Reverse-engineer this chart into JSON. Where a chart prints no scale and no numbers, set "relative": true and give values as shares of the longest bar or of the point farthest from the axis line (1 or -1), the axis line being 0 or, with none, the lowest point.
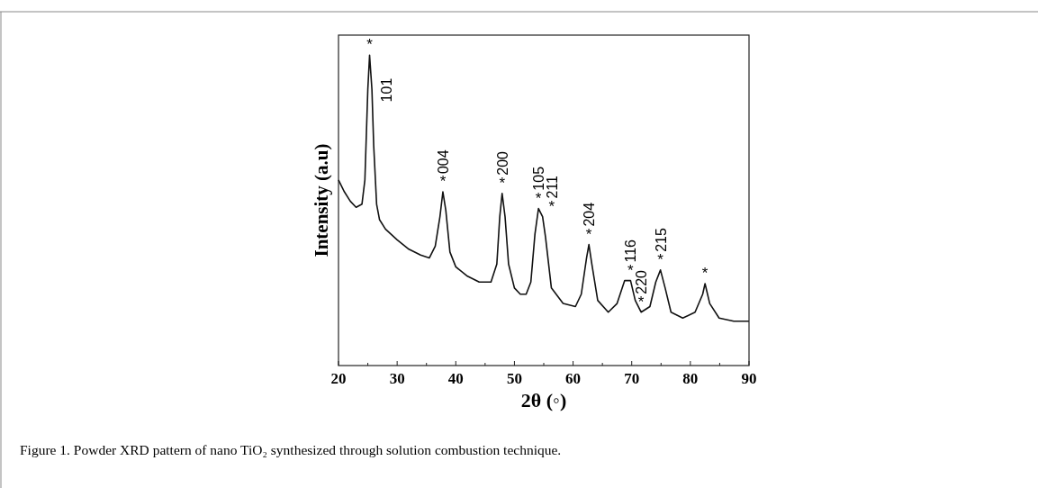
{
  "chart_data": {
    "type": "line",
    "relative": true,
    "xlabel": "2θ (◦)",
    "ylabel": "Intensity (a.u)",
    "xlim": [
      20,
      90
    ],
    "xticks": [
      20,
      {
        "value": 25,
        "label": null
      },
      30,
      {
        "value": 35,
        "label": null
      },
      40,
      {
        "value": 45,
        "label": null
      },
      50,
      {
        "value": 55,
        "label": null
      },
      60,
      {
        "value": 65,
        "label": null
      },
      70,
      {
        "value": 75,
        "label": null
      },
      80,
      {
        "value": 85,
        "label": null
      },
      90
    ],
    "grid": false,
    "marker": "none",
    "line_style": "solid",
    "tick_labels": "x",
    "series": [
      {
        "color": "#111111",
        "x": [
          20,
          21,
          22,
          23,
          24,
          24.5,
          25,
          25.3,
          25.7,
          26,
          26.5,
          27,
          28,
          30,
          32,
          34,
          35.5,
          36.5,
          37.3,
          37.8,
          38.3,
          39,
          40,
          42,
          44,
          46,
          47,
          47.5,
          47.9,
          48.4,
          49,
          50,
          51,
          52,
          52.8,
          53.5,
          54.1,
          54.8,
          55.3,
          56.3,
          58.3,
          60.4,
          61.4,
          62.3,
          62.7,
          63.2,
          64.2,
          66,
          67.5,
          68.8,
          69.8,
          70.6,
          71.6,
          73.1,
          74.1,
          74.9,
          75.7,
          76.7,
          78.7,
          80.8,
          82.1,
          82.5,
          83.3,
          84.9,
          87.4,
          90
        ],
        "values": [
          0.598,
          0.56,
          0.53,
          0.51,
          0.52,
          0.598,
          0.89,
          1,
          0.89,
          0.71,
          0.52,
          0.47,
          0.44,
          0.405,
          0.375,
          0.356,
          0.347,
          0.385,
          0.48,
          0.56,
          0.5,
          0.366,
          0.318,
          0.288,
          0.269,
          0.269,
          0.327,
          0.48,
          0.555,
          0.48,
          0.327,
          0.25,
          0.23,
          0.23,
          0.269,
          0.424,
          0.506,
          0.48,
          0.414,
          0.25,
          0.2,
          0.19,
          0.23,
          0.347,
          0.39,
          0.327,
          0.21,
          0.172,
          0.2,
          0.274,
          0.274,
          0.21,
          0.172,
          0.19,
          0.269,
          0.308,
          0.25,
          0.172,
          0.153,
          0.172,
          0.23,
          0.264,
          0.2,
          0.153,
          0.143,
          0.143
        ]
      }
    ],
    "annotations": [
      {
        "text": "*",
        "x": 25.3,
        "y": 1
      },
      {
        "text": "101",
        "x": 25.3,
        "y": 1
      },
      {
        "text": "*",
        "x": 37.8,
        "y": 0.56
      },
      {
        "text": "004",
        "x": 37.8,
        "y": 0.56
      },
      {
        "text": "*",
        "x": 47.9,
        "y": 0.555
      },
      {
        "text": "200",
        "x": 47.9,
        "y": 0.555
      },
      {
        "text": "*",
        "x": 54.1,
        "y": 0.506
      },
      {
        "text": "105",
        "x": 54.1,
        "y": 0.506
      },
      {
        "text": "*",
        "x": 54.8,
        "y": 0.48
      },
      {
        "text": "211",
        "x": 54.8,
        "y": 0.48
      },
      {
        "text": "*",
        "x": 62.7,
        "y": 0.39
      },
      {
        "text": "204",
        "x": 62.7,
        "y": 0.39
      },
      {
        "text": "*",
        "x": 69.8,
        "y": 0.274
      },
      {
        "text": "116",
        "x": 69.8,
        "y": 0.274
      },
      {
        "text": "*",
        "x": 71.6,
        "y": 0.172
      },
      {
        "text": "220",
        "x": 71.6,
        "y": 0.172
      },
      {
        "text": "*",
        "x": 74.9,
        "y": 0.308
      },
      {
        "text": "215",
        "x": 74.9,
        "y": 0.308
      },
      {
        "text": "*",
        "x": 82.5,
        "y": 0.264
      },
      "Figure 1. Powder XRD pattern of nano TiO₂ synthesized through solution combustion technique."
    ]
  }
}
